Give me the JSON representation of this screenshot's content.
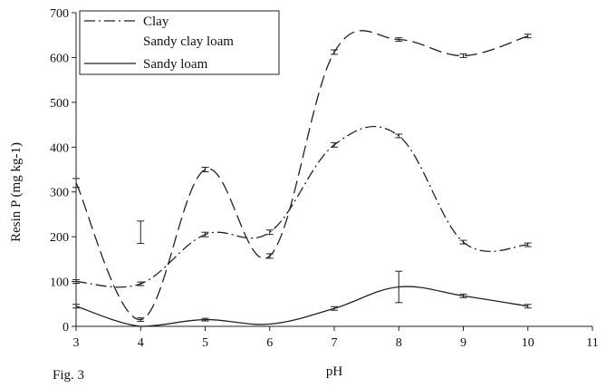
{
  "chart_data": {
    "type": "line",
    "xlabel": "pH",
    "ylabel": "Resin P (mg kg-1)",
    "xlim": [
      3,
      11
    ],
    "ylim": [
      0,
      700
    ],
    "xticks": [
      3,
      4,
      5,
      6,
      7,
      8,
      9,
      10,
      11
    ],
    "yticks": [
      0,
      100,
      200,
      300,
      400,
      500,
      600,
      700
    ],
    "x": [
      3,
      4,
      5,
      6,
      7,
      8,
      9,
      10
    ],
    "grid": false,
    "legend": "top-left",
    "series": [
      {
        "name": "Clay",
        "style": "dash-dot",
        "values": [
          100,
          95,
          205,
          210,
          405,
          425,
          188,
          182
        ],
        "error": [
          4,
          4,
          5,
          5,
          5,
          4,
          4,
          4
        ]
      },
      {
        "name": "Sandy clay loam",
        "style": "dashed",
        "values": [
          320,
          15,
          350,
          157,
          612,
          640,
          604,
          648
        ],
        "error": [
          10,
          4,
          5,
          5,
          5,
          4,
          4,
          4
        ]
      },
      {
        "name": "Sandy loam",
        "style": "solid",
        "values": [
          45,
          0,
          15,
          5,
          40,
          88,
          68,
          45
        ],
        "error": [
          4,
          0,
          3,
          0,
          4,
          35,
          4,
          4
        ]
      }
    ],
    "annotations": [
      {
        "x": 4,
        "y": 210,
        "error": 25
      }
    ]
  },
  "figure": {
    "label": "Fig. 3"
  }
}
